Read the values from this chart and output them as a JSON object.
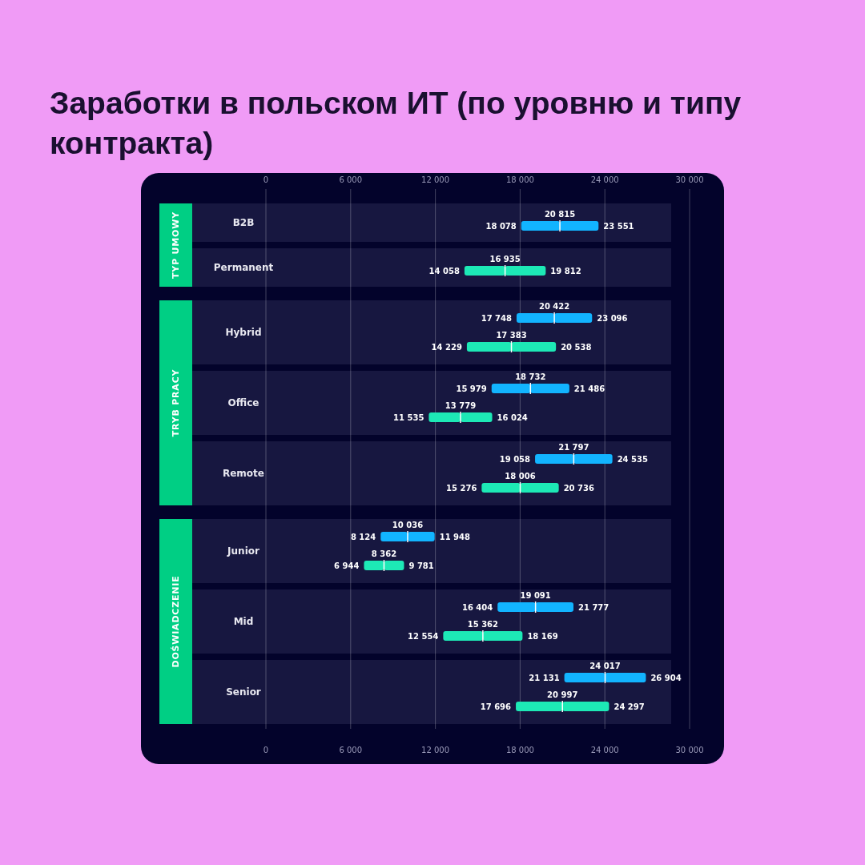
{
  "chart_data": {
    "type": "bar",
    "orientation": "horizontal",
    "title": "Заработки в польском ИТ (по уровню и типу контракта)",
    "categories": [
      "B2B",
      "Permanent",
      "Hybrid",
      "Office",
      "Remote",
      "Junior",
      "Mid",
      "Senior"
    ],
    "series": [
      {
        "type": "bar",
        "color": "#12b4ff",
        "base": [
          18078,
          null,
          17748,
          15979,
          19058,
          8124,
          16404,
          21131
        ],
        "values": [
          2737,
          null,
          2674,
          2753,
          2739,
          1912,
          2687,
          2886
        ]
      },
      {
        "type": "bar",
        "color": "#12b4ff",
        "base": [
          20815,
          null,
          20422,
          18732,
          21797,
          10036,
          19091,
          24017
        ],
        "values": [
          2736,
          null,
          2674,
          2754,
          2738,
          1912,
          2686,
          2887
        ]
      },
      {
        "type": "bar",
        "color": "#1de9b6",
        "base": [
          null,
          14058,
          14229,
          11535,
          15276,
          6944,
          12554,
          17696
        ],
        "values": [
          null,
          2877,
          3154,
          2244,
          2730,
          1418,
          2808,
          3301
        ]
      },
      {
        "type": "bar",
        "color": "#1de9b6",
        "base": [
          null,
          16935,
          17383,
          13779,
          18006,
          8362,
          15362,
          20997
        ],
        "values": [
          null,
          2877,
          3155,
          2245,
          2730,
          1419,
          2807,
          3300
        ]
      }
    ],
    "xlim": [
      0,
      30000
    ],
    "xticks": [
      {
        "value": 0,
        "label": "0"
      },
      {
        "value": 6000,
        "label": "6 000"
      },
      {
        "value": 12000,
        "label": "12 000"
      },
      {
        "value": 18000,
        "label": "18 000"
      },
      {
        "value": 24000,
        "label": "24 000"
      },
      {
        "value": 30000,
        "label": "30 000"
      }
    ],
    "x2lim": [
      0,
      30000
    ],
    "x2ticks": [
      {
        "value": 0,
        "label": "0"
      },
      {
        "value": 6000,
        "label": "6 000"
      },
      {
        "value": 12000,
        "label": "12 000"
      },
      {
        "value": 18000,
        "label": "18 000"
      },
      {
        "value": 24000,
        "label": "24 000"
      },
      {
        "value": 30000,
        "label": "30 000"
      }
    ],
    "grid": "x",
    "bands": [
      {
        "axis": "y",
        "from": "B2B",
        "to": "Permanent",
        "label": "TYP UMOWY",
        "color": "#171740"
      },
      {
        "axis": "y",
        "from": "Hybrid",
        "to": "Remote",
        "label": "TRYB PRACY",
        "color": "#171740"
      },
      {
        "axis": "y",
        "from": "Junior",
        "to": "Senior",
        "label": "DOŚWIADCZENIE",
        "color": "#171740"
      }
    ],
    "annotations": [
      {
        "text": "18 078",
        "x": 18078
      },
      {
        "text": "20 815",
        "x": 20815
      },
      {
        "text": "23 551",
        "x": 23551
      },
      {
        "text": "14 058",
        "x": 14058
      },
      {
        "text": "16 935",
        "x": 16935
      },
      {
        "text": "19 812",
        "x": 19812
      },
      {
        "text": "17 748",
        "x": 17748
      },
      {
        "text": "20 422",
        "x": 20422
      },
      {
        "text": "23 096",
        "x": 23096
      },
      {
        "text": "14 229",
        "x": 14229
      },
      {
        "text": "17 383",
        "x": 17383
      },
      {
        "text": "20 538",
        "x": 20538
      },
      {
        "text": "15 979",
        "x": 15979
      },
      {
        "text": "18 732",
        "x": 18732
      },
      {
        "text": "21 486",
        "x": 21486
      },
      {
        "text": "11 535",
        "x": 11535
      },
      {
        "text": "13 779",
        "x": 13779
      },
      {
        "text": "16 024",
        "x": 16024
      },
      {
        "text": "19 058",
        "x": 19058
      },
      {
        "text": "21 797",
        "x": 21797
      },
      {
        "text": "24 535",
        "x": 24535
      },
      {
        "text": "15 276",
        "x": 15276
      },
      {
        "text": "18 006",
        "x": 18006
      },
      {
        "text": "20 736",
        "x": 20736
      },
      {
        "text": "8 124",
        "x": 8124
      },
      {
        "text": "10 036",
        "x": 10036
      },
      {
        "text": "11 948",
        "x": 11948
      },
      {
        "text": "6 944",
        "x": 6944
      },
      {
        "text": "8 362",
        "x": 8362
      },
      {
        "text": "9 781",
        "x": 9781
      },
      {
        "text": "16 404",
        "x": 16404
      },
      {
        "text": "19 091",
        "x": 19091
      },
      {
        "text": "21 777",
        "x": 21777
      },
      {
        "text": "12 554",
        "x": 12554
      },
      {
        "text": "15 362",
        "x": 15362
      },
      {
        "text": "18 169",
        "x": 18169
      },
      {
        "text": "21 131",
        "x": 21131
      },
      {
        "text": "24 017",
        "x": 24017
      },
      {
        "text": "26 904",
        "x": 26904
      },
      {
        "text": "17 696",
        "x": 17696
      },
      {
        "text": "20 997",
        "x": 20997
      },
      {
        "text": "24 297",
        "x": 24297
      }
    ]
  }
}
